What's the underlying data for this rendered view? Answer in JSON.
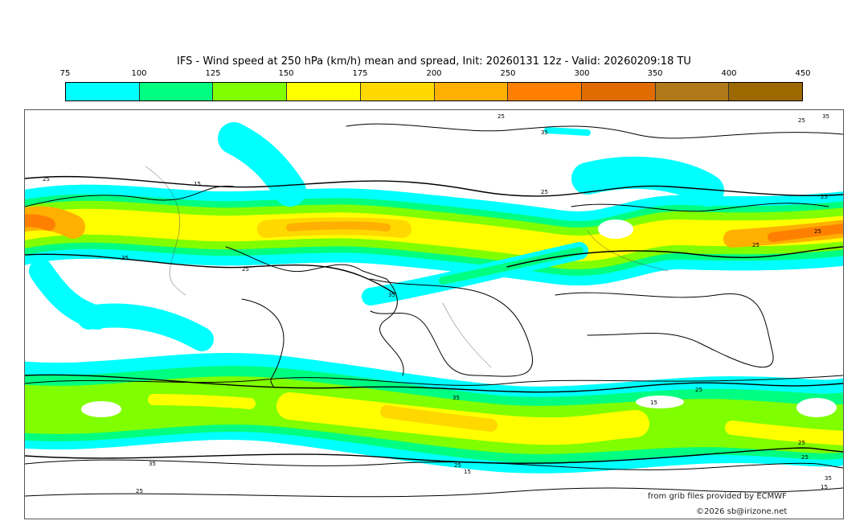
{
  "title": "IFS - Wind speed at 250 hPa (km/h) mean and spread, Init: 20260131 12z - Valid: 20260209:18 TU",
  "legend": {
    "ticks": [
      "75",
      "100",
      "125",
      "150",
      "175",
      "200",
      "250",
      "300",
      "350",
      "400",
      "450"
    ],
    "colors": [
      "#00ffff",
      "#00ff80",
      "#80ff00",
      "#ffff00",
      "#ffd800",
      "#ffb000",
      "#ff8000",
      "#e06c00",
      "#b07818",
      "#9c6800"
    ]
  },
  "map": {
    "contour_labels": [
      "25",
      "25",
      "35",
      "35",
      "25",
      "15",
      "25",
      "25",
      "35",
      "25",
      "25",
      "25",
      "35",
      "35",
      "25",
      "15",
      "25",
      "25",
      "35",
      "25",
      "15",
      "25",
      "35",
      "15"
    ]
  },
  "credits": {
    "source": "from grib files provided by ECMWF",
    "copyright": "©2026 sb@irizone.net"
  }
}
